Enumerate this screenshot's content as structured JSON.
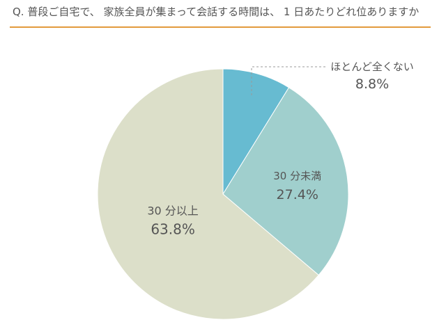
{
  "title": "Q. 普段ご自宅で、 家族全員が集まって会話する時間は、 1 日あたりどれ位ありますか",
  "colors": {
    "title_rule": "#e39a3c",
    "text": "#555555",
    "leader": "#999999"
  },
  "chart_data": {
    "type": "pie",
    "title": "",
    "start_angle_deg": 0,
    "direction": "clockwise",
    "slices": [
      {
        "label": "ほとんど全くない",
        "value": 8.8,
        "display": "8.8%",
        "color": "#67bbd1"
      },
      {
        "label": "30 分未満",
        "value": 27.4,
        "display": "27.4%",
        "color": "#a0cfcd"
      },
      {
        "label": "30 分以上",
        "value": 63.8,
        "display": "63.8%",
        "color": "#dcdfc9"
      }
    ]
  }
}
